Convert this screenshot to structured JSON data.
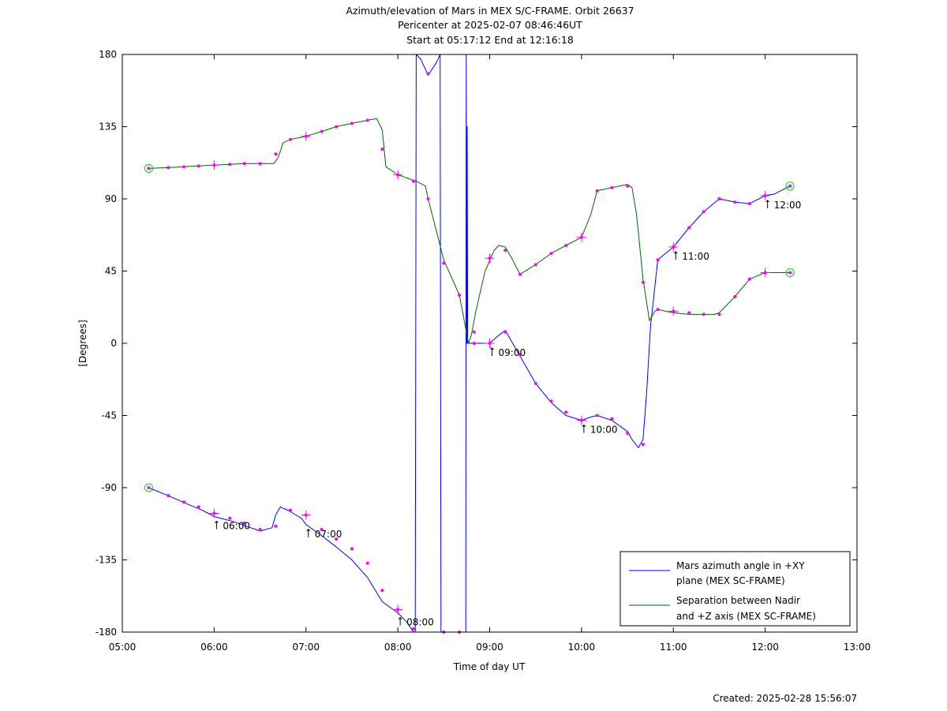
{
  "chart_data": {
    "type": "line",
    "title_lines": [
      "Azimuth/elevation of Mars in MEX S/C-FRAME.  Orbit 26637",
      "Pericenter at 2025-02-07 08:46:46UT",
      "Start at 05:17:12 End at 12:16:18"
    ],
    "xlabel": "Time of day UT",
    "ylabel": "[Degrees]",
    "footer": "Created: 2025-02-28 15:56:07",
    "x_unit": "hours of day UT",
    "xlim": [
      5,
      13
    ],
    "ylim": [
      -180,
      180
    ],
    "xticks": [
      5,
      6,
      7,
      8,
      9,
      10,
      11,
      12,
      13
    ],
    "xtick_labels": [
      "05:00",
      "06:00",
      "07:00",
      "08:00",
      "09:00",
      "10:00",
      "11:00",
      "12:00",
      "13:00"
    ],
    "yticks": [
      -180,
      -135,
      -90,
      -45,
      0,
      45,
      90,
      135,
      180
    ],
    "ytick_labels": [
      "-180",
      "-135",
      "-90",
      "-45",
      "0",
      "45",
      "90",
      "135",
      "180"
    ],
    "grid": false,
    "legend_position": "bottom-right",
    "series": [
      {
        "name": "Mars azimuth angle in +XY plane (MEX SC-FRAME)",
        "legend_lines": [
          "Mars azimuth angle in +XY",
          "plane (MEX SC-FRAME)"
        ],
        "color": "#0000ff",
        "x": [
          5.287,
          5.5,
          5.7,
          5.87,
          6.0,
          6.2,
          6.35,
          6.5,
          6.63,
          6.67,
          6.72,
          6.8,
          6.95,
          7.0,
          7.15,
          7.33,
          7.5,
          7.67,
          7.83,
          8.0,
          8.1,
          8.17,
          8.19,
          8.2,
          8.25,
          8.33,
          8.42,
          8.46,
          8.47,
          8.48,
          8.49,
          8.58,
          8.68,
          8.74,
          8.745,
          8.75,
          8.755,
          8.76,
          8.77,
          8.8,
          8.85,
          9.0,
          9.1,
          9.17,
          9.33,
          9.5,
          9.67,
          9.83,
          10.0,
          10.1,
          10.17,
          10.33,
          10.5,
          10.55,
          10.62,
          10.67,
          10.71,
          10.75,
          10.83,
          11.0,
          11.17,
          11.33,
          11.5,
          11.67,
          11.83,
          12.0,
          12.1,
          12.27
        ],
        "y": [
          -90,
          -95,
          -100,
          -104,
          -108,
          -111,
          -114,
          -117,
          -115,
          -107,
          -102,
          -104,
          -109,
          -113,
          -119,
          -127,
          -135,
          -146,
          -161,
          -168,
          -174,
          -180,
          -180,
          180,
          177,
          167,
          175,
          180,
          -180,
          -180,
          -180,
          -180,
          -180,
          -180,
          180,
          0,
          135,
          0,
          0,
          0,
          0,
          0,
          5,
          8,
          -8,
          -25,
          -37,
          -45,
          -48,
          -46,
          -45,
          -48,
          -55,
          -60,
          -65,
          -60,
          -30,
          10,
          52,
          60,
          72,
          82,
          90,
          88,
          87,
          92,
          93,
          98
        ],
        "sample_x": [
          5.287,
          5.5,
          5.67,
          5.83,
          6.0,
          6.17,
          6.33,
          6.5,
          6.67,
          6.83,
          7.0,
          7.17,
          7.33,
          7.5,
          7.67,
          7.83,
          8.0,
          8.17,
          8.33,
          8.5,
          8.67,
          8.83,
          9.0,
          9.17,
          9.33,
          9.5,
          9.67,
          9.83,
          10.0,
          10.17,
          10.33,
          10.5,
          10.67,
          10.83,
          11.0,
          11.17,
          11.33,
          11.5,
          11.67,
          11.83,
          12.0,
          12.27
        ],
        "sample_y": [
          -90,
          -95,
          -99,
          -102,
          -106,
          -109,
          -112,
          -116,
          -114,
          -104,
          -107,
          -116,
          -122,
          -128,
          -137,
          -154,
          -166,
          -178,
          168,
          -180,
          -180,
          0,
          0,
          7,
          -7,
          -25,
          -36,
          -43,
          -48,
          -45,
          -47,
          -56,
          -63,
          52,
          60,
          72,
          82,
          90,
          88,
          87,
          92,
          98
        ],
        "marked_samples_x": [
          5.287,
          6.0,
          7.0,
          8.0,
          9.0,
          10.0,
          11.0,
          12.0,
          12.27
        ],
        "time_labels": [
          {
            "text": "06:00",
            "x": 6.0,
            "y": -108
          },
          {
            "text": "07:00",
            "x": 7.0,
            "y": -113
          },
          {
            "text": "08:00",
            "x": 8.0,
            "y": -168
          },
          {
            "text": "09:00",
            "x": 9.0,
            "y": 0
          },
          {
            "text": "10:00",
            "x": 10.0,
            "y": -48
          },
          {
            "text": "11:00",
            "x": 11.0,
            "y": 60
          },
          {
            "text": "12:00",
            "x": 12.0,
            "y": 92
          }
        ]
      },
      {
        "name": "Separation between Nadir and +Z axis (MEX SC-FRAME)",
        "legend_lines": [
          "Separation between Nadir",
          "and +Z axis (MEX SC-FRAME)"
        ],
        "color": "#006600",
        "x": [
          5.287,
          5.5,
          5.67,
          5.83,
          6.0,
          6.17,
          6.33,
          6.5,
          6.65,
          6.7,
          6.75,
          6.83,
          7.0,
          7.17,
          7.33,
          7.5,
          7.67,
          7.77,
          7.83,
          7.87,
          8.0,
          8.1,
          8.2,
          8.3,
          8.33,
          8.42,
          8.5,
          8.67,
          8.77,
          8.8,
          8.85,
          8.95,
          9.05,
          9.1,
          9.17,
          9.25,
          9.33,
          9.5,
          9.67,
          9.83,
          10.0,
          10.1,
          10.17,
          10.33,
          10.5,
          10.55,
          10.6,
          10.67,
          10.74,
          10.8,
          10.83,
          11.0,
          11.17,
          11.33,
          11.45,
          11.5,
          11.67,
          11.83,
          12.0,
          12.27
        ],
        "y": [
          109,
          109.5,
          110,
          110.5,
          111,
          111.5,
          112,
          112,
          112,
          116,
          125,
          127,
          129,
          132,
          135,
          137,
          139,
          140,
          133,
          110,
          105,
          103,
          101,
          98,
          90,
          70,
          52,
          30,
          0,
          5,
          20,
          45,
          58,
          61,
          60,
          52,
          43,
          49,
          56,
          61,
          66,
          80,
          95,
          97,
          99,
          97,
          80,
          40,
          14,
          20,
          21,
          19,
          18,
          18,
          18,
          19,
          29,
          40,
          44,
          44
        ],
        "sample_x": [
          5.287,
          5.5,
          5.67,
          5.83,
          6.0,
          6.17,
          6.33,
          6.5,
          6.67,
          6.83,
          7.0,
          7.17,
          7.33,
          7.5,
          7.67,
          7.83,
          8.0,
          8.17,
          8.33,
          8.5,
          8.67,
          8.83,
          9.0,
          9.17,
          9.33,
          9.5,
          9.67,
          9.83,
          10.0,
          10.17,
          10.33,
          10.5,
          10.67,
          10.83,
          11.0,
          11.17,
          11.33,
          11.5,
          11.67,
          11.83,
          12.0,
          12.27
        ],
        "sample_y": [
          109,
          109.5,
          110,
          110.5,
          111,
          111.5,
          112,
          112,
          118,
          127,
          129,
          132,
          135,
          137,
          139,
          121,
          105,
          101,
          90,
          50,
          30,
          7,
          53,
          58,
          43,
          49,
          56,
          61,
          66,
          95,
          97,
          98,
          38,
          21,
          20,
          19,
          18,
          18,
          29,
          40,
          44,
          44
        ],
        "marked_samples_x": [
          5.287,
          6.0,
          7.0,
          8.0,
          9.0,
          10.0,
          11.0,
          12.0,
          12.27
        ]
      }
    ]
  }
}
